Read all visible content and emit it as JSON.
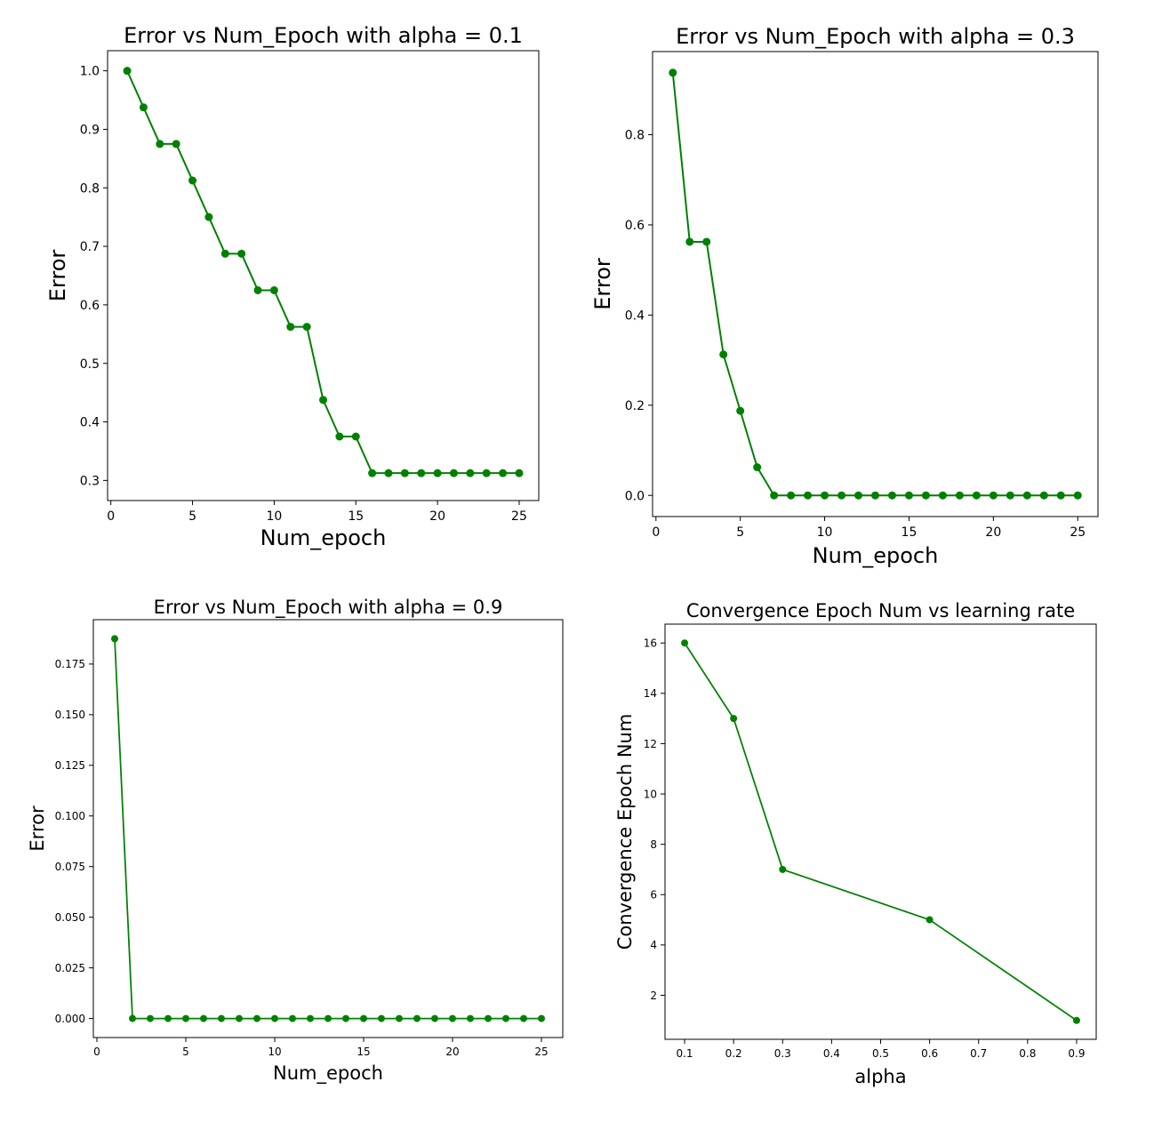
{
  "figure": {
    "line_color": "#008000",
    "background": "#ffffff"
  },
  "chart_data": [
    {
      "type": "line",
      "title": "Error vs Num_Epoch with alpha = 0.1",
      "xlabel": "Num_epoch",
      "ylabel": "Error",
      "xlim": [
        -0.2,
        26.2
      ],
      "ylim": [
        0.2656,
        1.0344
      ],
      "xticks": [
        0,
        5,
        10,
        15,
        20,
        25
      ],
      "xtick_labels": [
        "0",
        "5",
        "10",
        "15",
        "20",
        "25"
      ],
      "yticks": [
        0.3,
        0.4,
        0.5,
        0.6,
        0.7,
        0.8,
        0.9,
        1.0
      ],
      "ytick_labels": [
        "0.3",
        "0.4",
        "0.5",
        "0.6",
        "0.7",
        "0.8",
        "0.9",
        "1.0"
      ],
      "grid": false,
      "marker": "circle",
      "series": [
        {
          "x": [
            1,
            2,
            3,
            4,
            5,
            6,
            7,
            8,
            9,
            10,
            11,
            12,
            13,
            14,
            15,
            16,
            17,
            18,
            19,
            20,
            21,
            22,
            23,
            24,
            25
          ],
          "y": [
            1.0,
            0.9375,
            0.875,
            0.875,
            0.8125,
            0.75,
            0.6875,
            0.6875,
            0.625,
            0.625,
            0.5625,
            0.5625,
            0.4375,
            0.375,
            0.375,
            0.3125,
            0.3125,
            0.3125,
            0.3125,
            0.3125,
            0.3125,
            0.3125,
            0.3125,
            0.3125,
            0.3125
          ]
        }
      ]
    },
    {
      "type": "line",
      "title": "Error vs Num_Epoch with alpha = 0.3",
      "xlabel": "Num_epoch",
      "ylabel": "Error",
      "xlim": [
        -0.2,
        26.2
      ],
      "ylim": [
        -0.0469,
        0.9844
      ],
      "xticks": [
        0,
        5,
        10,
        15,
        20,
        25
      ],
      "xtick_labels": [
        "0",
        "5",
        "10",
        "15",
        "20",
        "25"
      ],
      "yticks": [
        0.0,
        0.2,
        0.4,
        0.6,
        0.8
      ],
      "ytick_labels": [
        "0.0",
        "0.2",
        "0.4",
        "0.6",
        "0.8"
      ],
      "grid": false,
      "marker": "circle",
      "series": [
        {
          "x": [
            1,
            2,
            3,
            4,
            5,
            6,
            7,
            8,
            9,
            10,
            11,
            12,
            13,
            14,
            15,
            16,
            17,
            18,
            19,
            20,
            21,
            22,
            23,
            24,
            25
          ],
          "y": [
            0.9375,
            0.5625,
            0.5625,
            0.3125,
            0.1875,
            0.0625,
            0,
            0,
            0,
            0,
            0,
            0,
            0,
            0,
            0,
            0,
            0,
            0,
            0,
            0,
            0,
            0,
            0,
            0,
            0
          ]
        }
      ]
    },
    {
      "type": "line",
      "title": "Error vs Num_Epoch with alpha = 0.9",
      "xlabel": "Num_epoch",
      "ylabel": "Error",
      "xlim": [
        -0.2,
        26.2
      ],
      "ylim": [
        -0.0094,
        0.1969
      ],
      "xticks": [
        0,
        5,
        10,
        15,
        20,
        25
      ],
      "xtick_labels": [
        "0",
        "5",
        "10",
        "15",
        "20",
        "25"
      ],
      "yticks": [
        0.0,
        0.025,
        0.05,
        0.075,
        0.1,
        0.125,
        0.15,
        0.175
      ],
      "ytick_labels": [
        "0.000",
        "0.025",
        "0.050",
        "0.075",
        "0.100",
        "0.125",
        "0.150",
        "0.175"
      ],
      "grid": false,
      "marker": "circle",
      "series": [
        {
          "x": [
            1,
            2,
            3,
            4,
            5,
            6,
            7,
            8,
            9,
            10,
            11,
            12,
            13,
            14,
            15,
            16,
            17,
            18,
            19,
            20,
            21,
            22,
            23,
            24,
            25
          ],
          "y": [
            0.1875,
            0,
            0,
            0,
            0,
            0,
            0,
            0,
            0,
            0,
            0,
            0,
            0,
            0,
            0,
            0,
            0,
            0,
            0,
            0,
            0,
            0,
            0,
            0,
            0
          ]
        }
      ]
    },
    {
      "type": "line",
      "title": "Convergence Epoch Num vs learning rate",
      "xlabel": "alpha",
      "ylabel": "Convergence Epoch Num",
      "xlim": [
        0.06,
        0.94
      ],
      "ylim": [
        0.25,
        16.75
      ],
      "xticks": [
        0.1,
        0.2,
        0.3,
        0.4,
        0.5,
        0.6,
        0.7,
        0.8,
        0.9
      ],
      "xtick_labels": [
        "0.1",
        "0.2",
        "0.3",
        "0.4",
        "0.5",
        "0.6",
        "0.7",
        "0.8",
        "0.9"
      ],
      "yticks": [
        2,
        4,
        6,
        8,
        10,
        12,
        14,
        16
      ],
      "ytick_labels": [
        "2",
        "4",
        "6",
        "8",
        "10",
        "12",
        "14",
        "16"
      ],
      "grid": false,
      "marker": "circle",
      "series": [
        {
          "x": [
            0.1,
            0.2,
            0.3,
            0.6,
            0.9
          ],
          "y": [
            16,
            13,
            7,
            5,
            1
          ]
        }
      ]
    }
  ]
}
